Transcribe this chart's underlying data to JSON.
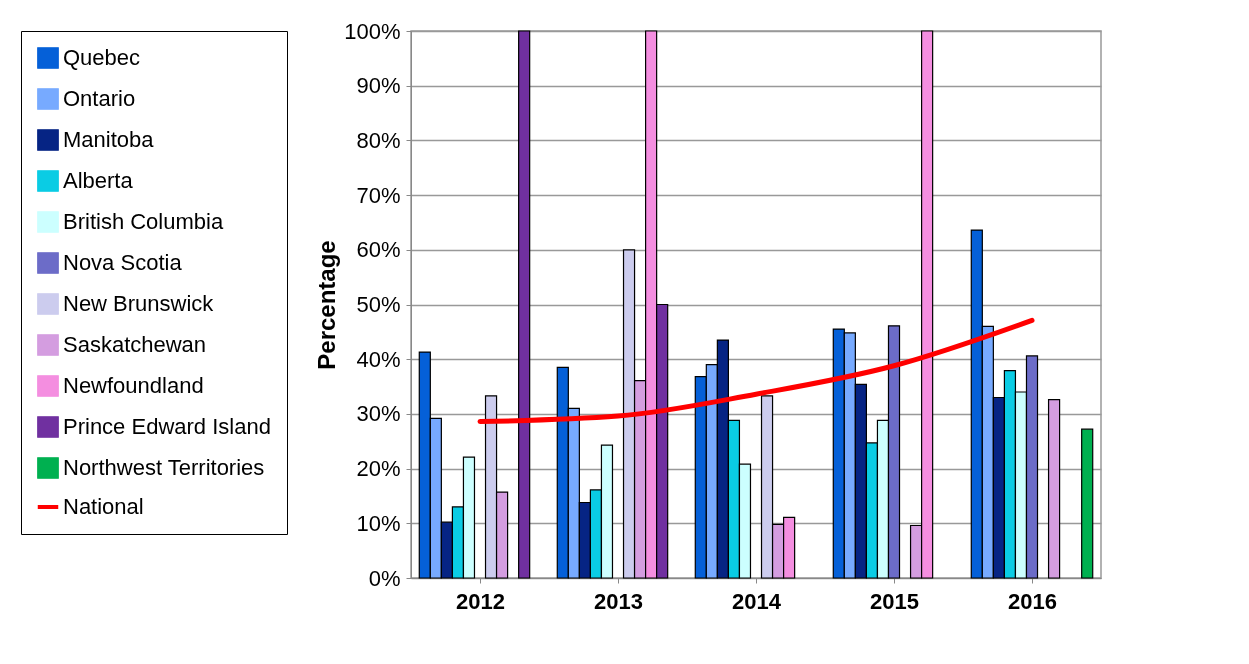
{
  "chart_data": {
    "type": "bar",
    "ylabel": "Percentage",
    "categories": [
      "2012",
      "2013",
      "2014",
      "2015",
      "2016"
    ],
    "ylim": [
      0,
      100
    ],
    "yticks": [
      {
        "value": 0,
        "label": "0%"
      },
      {
        "value": 10,
        "label": "10%"
      },
      {
        "value": 20,
        "label": "20%"
      },
      {
        "value": 30,
        "label": "30%"
      },
      {
        "value": 40,
        "label": "40%"
      },
      {
        "value": 50,
        "label": "50%"
      },
      {
        "value": 60,
        "label": "60%"
      },
      {
        "value": 70,
        "label": "70%"
      },
      {
        "value": 80,
        "label": "80%"
      },
      {
        "value": 90,
        "label": "90%"
      },
      {
        "value": 100,
        "label": "100%"
      }
    ],
    "grid": "y",
    "legend": "left",
    "series": [
      {
        "name": "Quebec",
        "color": "#0560d8",
        "values": [
          41.3,
          38.5,
          36.8,
          45.5,
          63.6
        ]
      },
      {
        "name": "Ontario",
        "color": "#77aaff",
        "values": [
          29.2,
          31,
          39,
          44.8,
          46
        ]
      },
      {
        "name": "Manitoba",
        "color": "#062484",
        "values": [
          10.2,
          13.8,
          43.5,
          35.4,
          33
        ]
      },
      {
        "name": "Alberta",
        "color": "#0acce4",
        "values": [
          13,
          16.1,
          28.8,
          24.7,
          37.9
        ]
      },
      {
        "name": "British Columbia",
        "color": "#ccffff",
        "values": [
          22.1,
          24.3,
          20.8,
          28.8,
          34
        ]
      },
      {
        "name": "Nova Scotia",
        "color": "#6c6cc8",
        "values": [
          null,
          null,
          null,
          46.1,
          40.6
        ]
      },
      {
        "name": "New Brunswick",
        "color": "#ccccee",
        "values": [
          33.3,
          60,
          33.3,
          null,
          null
        ]
      },
      {
        "name": "Saskatchewan",
        "color": "#d49de0",
        "values": [
          15.7,
          36.1,
          9.8,
          9.6,
          32.6
        ]
      },
      {
        "name": "Newfoundland",
        "color": "#f48ee0",
        "values": [
          null,
          100,
          11.1,
          100,
          null
        ]
      },
      {
        "name": "Prince Edward Island",
        "color": "#7030a0",
        "values": [
          100,
          50,
          null,
          null,
          null
        ]
      },
      {
        "name": "Northwest Territories",
        "color": "#00b050",
        "values": [
          null,
          null,
          null,
          null,
          27.2
        ]
      },
      {
        "name": "National",
        "type": "line",
        "color": "#ff0000",
        "values": [
          28.6,
          29.6,
          33.6,
          38.8,
          47.1
        ]
      }
    ]
  }
}
